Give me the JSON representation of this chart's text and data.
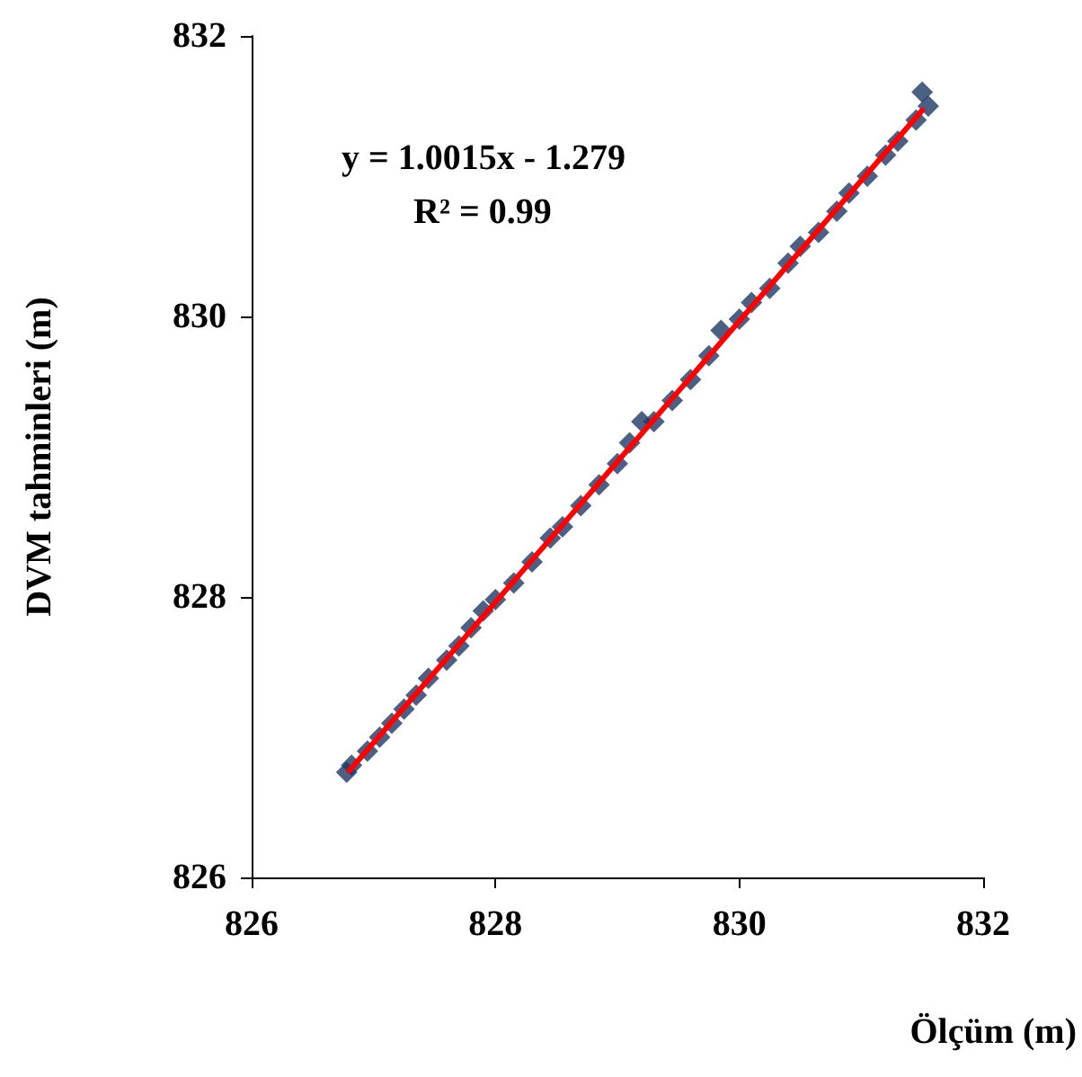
{
  "chart_data": {
    "type": "scatter",
    "xlabel": "Ölçüm (m)",
    "ylabel": "DVM tahminleri (m)",
    "annotations": [
      "y = 1.0015x - 1.279",
      "R² = 0.99"
    ],
    "xlim": [
      826,
      832
    ],
    "xticks": [
      826,
      828,
      830,
      832
    ],
    "ylim": [
      826,
      832
    ],
    "yticks": [
      826,
      828,
      830,
      832
    ],
    "grid": false,
    "series": [
      {
        "color": "#1f3864",
        "marker": "diamond",
        "x": [
          826.78,
          826.82,
          826.95,
          827.05,
          827.15,
          827.25,
          827.35,
          827.45,
          827.6,
          827.7,
          827.8,
          827.9,
          828.0,
          828.15,
          828.3,
          828.45,
          828.55,
          828.7,
          828.85,
          829.0,
          829.1,
          829.2,
          829.3,
          829.45,
          829.6,
          829.75,
          829.85,
          830.0,
          830.1,
          830.25,
          830.4,
          830.5,
          830.65,
          830.8,
          830.9,
          831.05,
          831.2,
          831.3,
          831.45,
          831.5,
          831.55
        ],
        "values": [
          826.75,
          826.8,
          826.9,
          827.0,
          827.1,
          827.2,
          827.3,
          827.42,
          827.55,
          827.65,
          827.78,
          827.9,
          827.98,
          828.1,
          828.25,
          828.42,
          828.5,
          828.65,
          828.8,
          828.95,
          829.1,
          829.25,
          829.25,
          829.4,
          829.55,
          829.72,
          829.9,
          829.98,
          830.1,
          830.2,
          830.38,
          830.5,
          830.6,
          830.75,
          830.88,
          831.0,
          831.15,
          831.25,
          831.4,
          831.6,
          831.5
        ]
      },
      {
        "type": "line",
        "marker": "none",
        "color": "#ff0000",
        "x": [
          826.8,
          831.5
        ],
        "values": [
          826.76,
          831.47
        ]
      }
    ]
  }
}
